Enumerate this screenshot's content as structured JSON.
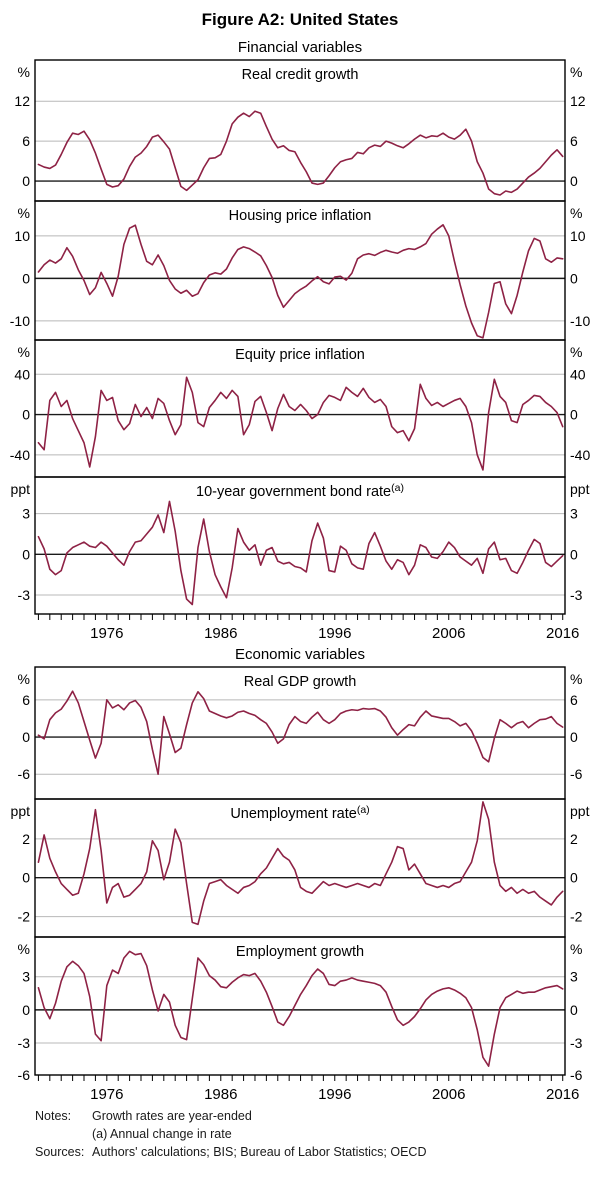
{
  "title": "Figure A2: United States",
  "colors": {
    "line": "#8E2245",
    "grid": "#B8B8B8",
    "zero_line": "#1a1a1a",
    "border": "#000000",
    "text": "#000000"
  },
  "axis": {
    "x_domain": [
      1969.7,
      2016.2
    ],
    "x_tick_label_years": [
      1976,
      1986,
      1996,
      2006,
      2016
    ],
    "x_minor_tick_start": 1970,
    "x_minor_tick_end": 2016,
    "x_minor_tick_step": 1
  },
  "groups": [
    {
      "subtitle": "Financial variables"
    },
    {
      "subtitle": "Economic variables"
    }
  ],
  "notes": {
    "label": "Notes:",
    "line1": "Growth rates are year-ended",
    "line2": "(a) Annual change in rate",
    "sources_label": "Sources:",
    "sources": "Authors' calculations; BIS; Bureau of Labor Statistics; OECD"
  },
  "chart_data": [
    {
      "type": "line",
      "group": 0,
      "title": "Real credit growth",
      "title_sup": "",
      "unit": "%",
      "ylim": [
        -3.0,
        18.2
      ],
      "yticks": [
        12,
        6,
        0
      ],
      "x_start": 1970,
      "x_step": 0.5,
      "values": [
        2.5,
        2.1,
        1.9,
        2.4,
        4.0,
        5.8,
        7.2,
        7.0,
        7.5,
        6.2,
        4.2,
        1.8,
        -0.5,
        -0.9,
        -0.7,
        0.3,
        2.2,
        3.6,
        4.2,
        5.2,
        6.6,
        6.9,
        5.9,
        4.8,
        2.0,
        -0.8,
        -1.4,
        -0.6,
        0.2,
        2.0,
        3.4,
        3.5,
        4.0,
        6.0,
        8.6,
        9.6,
        10.2,
        9.7,
        10.5,
        10.2,
        8.2,
        6.3,
        5.0,
        5.3,
        4.6,
        4.4,
        2.8,
        1.4,
        -0.3,
        -0.5,
        -0.3,
        0.8,
        2.0,
        2.9,
        3.2,
        3.4,
        4.3,
        4.1,
        5.0,
        5.4,
        5.2,
        6.0,
        5.7,
        5.3,
        5.0,
        5.6,
        6.3,
        6.9,
        6.5,
        6.8,
        6.7,
        7.2,
        6.6,
        6.3,
        6.9,
        7.8,
        6.0,
        2.9,
        1.2,
        -1.2,
        -1.9,
        -2.1,
        -1.5,
        -1.7,
        -1.2,
        -0.3,
        0.6,
        1.2,
        1.9,
        2.9,
        3.9,
        4.7,
        3.7
      ]
    },
    {
      "type": "line",
      "group": 0,
      "title": "Housing price inflation",
      "title_sup": "",
      "unit": "%",
      "ylim": [
        -14.5,
        18.2
      ],
      "yticks": [
        10,
        0,
        -10
      ],
      "x_start": 1970,
      "x_step": 0.5,
      "values": [
        1.5,
        3.2,
        4.3,
        3.6,
        4.6,
        7.2,
        5.2,
        2.0,
        -0.5,
        -3.8,
        -2.2,
        1.4,
        -1.2,
        -4.2,
        0.5,
        8.0,
        11.8,
        12.5,
        8.0,
        4.0,
        3.2,
        5.5,
        3.0,
        -0.5,
        -2.5,
        -3.5,
        -2.8,
        -4.2,
        -3.6,
        -1.0,
        0.8,
        1.3,
        1.0,
        2.2,
        4.8,
        6.8,
        7.4,
        7.0,
        6.2,
        5.3,
        3.0,
        0.2,
        -4.0,
        -6.8,
        -5.2,
        -3.6,
        -2.6,
        -1.8,
        -0.6,
        0.4,
        -0.8,
        -1.3,
        0.3,
        0.5,
        -0.4,
        1.2,
        4.6,
        5.5,
        5.8,
        5.4,
        6.1,
        6.6,
        6.2,
        5.9,
        6.6,
        7.0,
        6.8,
        7.4,
        8.2,
        10.4,
        11.6,
        12.6,
        10.0,
        4.0,
        -1.5,
        -6.5,
        -10.5,
        -13.5,
        -14.0,
        -8.0,
        -1.2,
        -0.8,
        -6.0,
        -8.3,
        -4.0,
        1.5,
        6.5,
        9.4,
        8.8,
        4.6,
        3.8,
        4.8,
        4.6
      ]
    },
    {
      "type": "line",
      "group": 0,
      "title": "Equity price inflation",
      "title_sup": "",
      "unit": "%",
      "ylim": [
        -62,
        74
      ],
      "yticks": [
        40,
        0,
        -40
      ],
      "x_start": 1970,
      "x_step": 0.5,
      "values": [
        -28,
        -35,
        14,
        22,
        8,
        14,
        -4,
        -16,
        -28,
        -52,
        -22,
        24,
        14,
        17,
        -6,
        -15,
        -9,
        10,
        -2,
        7,
        -4,
        16,
        11,
        -6,
        -20,
        -10,
        37,
        22,
        -8,
        -12,
        7,
        14,
        22,
        16,
        24,
        18,
        -20,
        -10,
        13,
        18,
        2,
        -16,
        6,
        20,
        8,
        4,
        10,
        4,
        -4,
        0,
        12,
        19,
        17,
        14,
        27,
        22,
        18,
        26,
        17,
        12,
        15,
        8,
        -12,
        -18,
        -16,
        -26,
        -14,
        30,
        16,
        9,
        12,
        8,
        11,
        14,
        16,
        8,
        -8,
        -40,
        -55,
        2,
        35,
        18,
        12,
        -6,
        -8,
        10,
        14,
        19,
        18,
        12,
        8,
        2,
        -12
      ]
    },
    {
      "type": "line",
      "group": 0,
      "title": "10-year government bond rate",
      "title_sup": "(a)",
      "unit": "ppt",
      "ylim": [
        -4.4,
        5.7
      ],
      "yticks": [
        3,
        0,
        -3
      ],
      "x_start": 1970,
      "x_step": 0.5,
      "values": [
        1.3,
        0.4,
        -1.1,
        -1.5,
        -1.2,
        0.1,
        0.5,
        0.7,
        0.9,
        0.6,
        0.5,
        0.9,
        0.6,
        0.1,
        -0.4,
        -0.8,
        0.2,
        0.9,
        1.0,
        1.5,
        2.0,
        2.9,
        1.6,
        3.9,
        1.7,
        -1.2,
        -3.3,
        -3.7,
        0.5,
        2.6,
        0.2,
        -1.5,
        -2.4,
        -3.2,
        -1.0,
        1.9,
        0.9,
        0.3,
        0.7,
        -0.8,
        0.3,
        0.5,
        -0.5,
        -0.7,
        -0.6,
        -0.9,
        -1.0,
        -1.3,
        1.0,
        2.3,
        1.2,
        -1.2,
        -1.3,
        0.6,
        0.3,
        -0.7,
        -1.0,
        -1.1,
        0.8,
        1.6,
        0.6,
        -0.5,
        -1.1,
        -0.4,
        -0.6,
        -1.5,
        -0.8,
        0.7,
        0.5,
        -0.2,
        -0.3,
        0.2,
        0.9,
        0.5,
        -0.2,
        -0.5,
        -0.8,
        -0.3,
        -1.4,
        0.4,
        0.9,
        -0.4,
        -0.3,
        -1.2,
        -1.4,
        -0.6,
        0.3,
        1.1,
        0.8,
        -0.6,
        -0.9,
        -0.5,
        -0.1
      ]
    },
    {
      "type": "line",
      "group": 1,
      "title": "Real GDP growth",
      "title_sup": "",
      "unit": "%",
      "ylim": [
        -10.0,
        11.3
      ],
      "yticks": [
        6,
        0,
        -6
      ],
      "x_start": 1970,
      "x_step": 0.5,
      "values": [
        0.3,
        -0.3,
        2.8,
        3.9,
        4.5,
        5.8,
        7.4,
        5.5,
        2.5,
        -0.5,
        -3.4,
        -1.0,
        6.0,
        4.7,
        5.2,
        4.4,
        5.5,
        5.9,
        4.8,
        2.5,
        -2.0,
        -6.0,
        3.3,
        0.5,
        -2.5,
        -1.8,
        2.0,
        5.5,
        7.3,
        6.2,
        4.2,
        3.8,
        3.4,
        3.1,
        3.4,
        4.0,
        4.2,
        3.8,
        3.5,
        2.8,
        2.2,
        0.8,
        -1.0,
        -0.3,
        2.0,
        3.3,
        2.5,
        2.2,
        3.2,
        4.0,
        2.8,
        2.2,
        2.8,
        3.8,
        4.2,
        4.4,
        4.3,
        4.6,
        4.5,
        4.6,
        4.2,
        3.2,
        1.5,
        0.3,
        1.2,
        2.0,
        1.8,
        3.2,
        4.2,
        3.4,
        3.2,
        3.0,
        3.0,
        2.5,
        1.8,
        2.2,
        1.0,
        -1.0,
        -3.3,
        -4.0,
        -0.2,
        2.8,
        2.2,
        1.5,
        2.2,
        2.5,
        1.5,
        2.2,
        2.8,
        2.9,
        3.3,
        2.2,
        1.6
      ]
    },
    {
      "type": "line",
      "group": 1,
      "title": "Unemployment rate",
      "title_sup": "(a)",
      "unit": "ppt",
      "ylim": [
        -3.05,
        4.05
      ],
      "yticks": [
        2,
        0,
        -2
      ],
      "x_start": 1970,
      "x_step": 0.5,
      "values": [
        0.8,
        2.2,
        1.0,
        0.3,
        -0.3,
        -0.6,
        -0.9,
        -0.8,
        0.2,
        1.5,
        3.5,
        1.4,
        -1.3,
        -0.5,
        -0.3,
        -1.0,
        -0.9,
        -0.6,
        -0.3,
        0.3,
        1.9,
        1.4,
        -0.1,
        0.8,
        2.5,
        1.8,
        -0.3,
        -2.3,
        -2.4,
        -1.2,
        -0.3,
        -0.2,
        -0.1,
        -0.4,
        -0.6,
        -0.8,
        -0.5,
        -0.4,
        -0.2,
        0.2,
        0.5,
        1.0,
        1.5,
        1.1,
        0.9,
        0.4,
        -0.5,
        -0.7,
        -0.8,
        -0.5,
        -0.2,
        -0.4,
        -0.3,
        -0.4,
        -0.5,
        -0.4,
        -0.3,
        -0.4,
        -0.5,
        -0.3,
        -0.4,
        0.2,
        0.8,
        1.6,
        1.5,
        0.4,
        0.7,
        0.2,
        -0.3,
        -0.4,
        -0.5,
        -0.4,
        -0.5,
        -0.3,
        -0.2,
        0.3,
        0.8,
        1.9,
        3.9,
        3.0,
        0.8,
        -0.4,
        -0.7,
        -0.5,
        -0.8,
        -0.6,
        -0.8,
        -0.7,
        -1.0,
        -1.2,
        -1.4,
        -1.0,
        -0.7
      ]
    },
    {
      "type": "line",
      "group": 1,
      "title": "Employment growth",
      "title_sup": "",
      "unit": "%",
      "ylim": [
        -5.9,
        6.6
      ],
      "yticks": [
        3,
        0,
        -3,
        -6
      ],
      "x_start": 1970,
      "x_step": 0.5,
      "values": [
        2.0,
        0.2,
        -0.8,
        0.6,
        2.6,
        3.9,
        4.4,
        4.0,
        3.3,
        1.2,
        -2.2,
        -2.8,
        2.2,
        3.6,
        3.3,
        4.7,
        5.3,
        5.0,
        5.1,
        4.0,
        1.8,
        -0.1,
        1.4,
        0.7,
        -1.4,
        -2.5,
        -2.7,
        1.0,
        4.7,
        4.1,
        3.1,
        2.7,
        2.1,
        2.0,
        2.5,
        2.9,
        3.2,
        3.1,
        3.3,
        2.6,
        1.6,
        0.3,
        -1.1,
        -1.4,
        -0.6,
        0.4,
        1.4,
        2.2,
        3.1,
        3.7,
        3.3,
        2.3,
        2.2,
        2.6,
        2.7,
        2.9,
        2.7,
        2.6,
        2.5,
        2.4,
        2.2,
        1.6,
        0.3,
        -0.9,
        -1.4,
        -1.1,
        -0.6,
        0.1,
        0.9,
        1.4,
        1.7,
        1.9,
        2.0,
        1.8,
        1.5,
        1.1,
        0.2,
        -1.8,
        -4.3,
        -5.1,
        -2.2,
        0.2,
        1.1,
        1.4,
        1.7,
        1.5,
        1.6,
        1.6,
        1.8,
        2.0,
        2.1,
        2.2,
        1.9
      ]
    }
  ]
}
